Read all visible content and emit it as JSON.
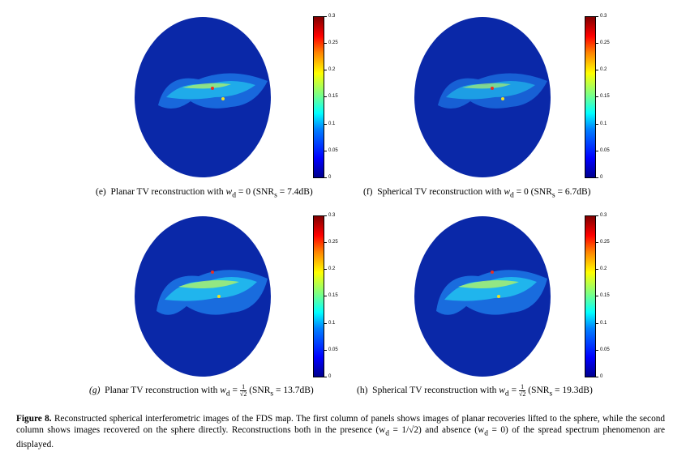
{
  "colorbar": {
    "ticks": [
      "0.3",
      "0.25",
      "0.2",
      "0.15",
      "0.1",
      "0.05",
      "0"
    ]
  },
  "panels": [
    {
      "id": "e",
      "label": "(e)",
      "text": "Planar TV reconstruction with",
      "wd": "= 0",
      "snr": "(SNR",
      "snr_val": "= 7.4dB)"
    },
    {
      "id": "f",
      "label": "(f)",
      "text": "Spherical TV reconstruction with",
      "wd": "= 0",
      "snr": "(SNR",
      "snr_val": "= 6.7dB)"
    },
    {
      "id": "g",
      "label": "(g)",
      "text": "Planar TV reconstruction with",
      "wd": "=",
      "snr": "(SNR",
      "snr_val": "= 13.7dB)"
    },
    {
      "id": "h",
      "label": "(h)",
      "text": "Spherical TV reconstruction with",
      "wd": "=",
      "snr": "(SNR",
      "snr_val": "= 19.3dB)"
    }
  ],
  "figure_caption": {
    "label": "Figure 8.",
    "text": "Reconstructed spherical interferometric images of the FDS map. The first column of panels shows images of planar recoveries lifted to the sphere, while the second column shows images recovered on the sphere directly. Reconstructions both in the presence (w",
    "mid": " = 1/√2) and absence (w",
    "end": " = 0) of the spread spectrum phenomenon are displayed."
  }
}
